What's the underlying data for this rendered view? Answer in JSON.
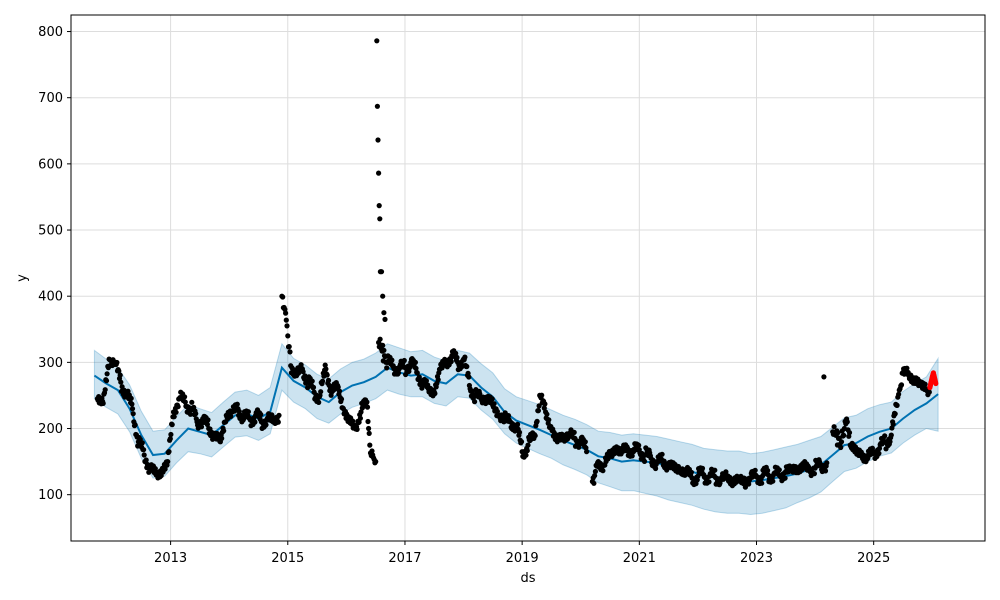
{
  "chart_data": {
    "type": "scatter",
    "xlabel": "ds",
    "ylabel": "y",
    "xlim": [
      2011.3,
      2026.9
    ],
    "ylim": [
      30,
      825
    ],
    "grid": true,
    "x_ticks": [
      2013,
      2015,
      2017,
      2019,
      2021,
      2023,
      2025
    ],
    "x_tick_labels": [
      "2013",
      "2015",
      "2017",
      "2019",
      "2021",
      "2023",
      "2025"
    ],
    "y_ticks": [
      100,
      200,
      300,
      400,
      500,
      600,
      700,
      800
    ],
    "y_tick_labels": [
      "100",
      "200",
      "300",
      "400",
      "500",
      "600",
      "700",
      "800"
    ],
    "colors": {
      "observed": "#000000",
      "forecast": "#0072B2",
      "interval": "#0072B2",
      "recent": "#ff0000",
      "grid": "#dddddd"
    },
    "forecast": {
      "x": [
        2011.7,
        2011.9,
        2012.1,
        2012.3,
        2012.5,
        2012.7,
        2012.9,
        2013.1,
        2013.3,
        2013.5,
        2013.7,
        2013.9,
        2014.1,
        2014.3,
        2014.5,
        2014.7,
        2014.9,
        2015.1,
        2015.3,
        2015.5,
        2015.7,
        2015.9,
        2016.1,
        2016.3,
        2016.5,
        2016.7,
        2016.9,
        2017.1,
        2017.3,
        2017.5,
        2017.7,
        2017.9,
        2018.1,
        2018.3,
        2018.5,
        2018.7,
        2018.9,
        2019.1,
        2019.3,
        2019.5,
        2019.7,
        2019.9,
        2020.1,
        2020.3,
        2020.5,
        2020.7,
        2020.9,
        2021.1,
        2021.3,
        2021.5,
        2021.7,
        2021.9,
        2022.1,
        2022.3,
        2022.5,
        2022.7,
        2022.9,
        2023.1,
        2023.3,
        2023.5,
        2023.7,
        2023.9,
        2024.1,
        2024.3,
        2024.5,
        2024.7,
        2024.9,
        2025.1,
        2025.3,
        2025.5,
        2025.7,
        2025.9,
        2026.1
      ],
      "yhat": [
        280,
        268,
        258,
        230,
        190,
        160,
        162,
        182,
        200,
        195,
        190,
        205,
        220,
        222,
        215,
        225,
        292,
        272,
        262,
        248,
        240,
        255,
        265,
        270,
        278,
        292,
        285,
        280,
        282,
        272,
        268,
        282,
        280,
        262,
        248,
        225,
        212,
        205,
        198,
        190,
        182,
        175,
        168,
        158,
        155,
        150,
        152,
        150,
        148,
        143,
        140,
        135,
        128,
        126,
        125,
        124,
        120,
        122,
        125,
        128,
        132,
        138,
        145,
        160,
        175,
        178,
        188,
        195,
        200,
        215,
        228,
        238,
        252
      ],
      "lower": [
        245,
        232,
        222,
        195,
        155,
        125,
        128,
        148,
        165,
        162,
        157,
        172,
        187,
        189,
        182,
        192,
        258,
        240,
        230,
        215,
        208,
        222,
        232,
        238,
        245,
        258,
        252,
        248,
        248,
        238,
        234,
        248,
        246,
        228,
        214,
        192,
        178,
        170,
        162,
        155,
        145,
        138,
        130,
        118,
        112,
        106,
        106,
        102,
        98,
        92,
        88,
        84,
        78,
        74,
        72,
        72,
        70,
        72,
        76,
        80,
        88,
        95,
        104,
        120,
        135,
        140,
        150,
        158,
        163,
        178,
        190,
        200,
        196
      ],
      "upper": [
        318,
        305,
        292,
        266,
        226,
        196,
        198,
        218,
        236,
        230,
        224,
        240,
        255,
        258,
        250,
        262,
        328,
        306,
        296,
        282,
        275,
        290,
        300,
        305,
        314,
        328,
        322,
        316,
        318,
        308,
        302,
        318,
        314,
        298,
        284,
        260,
        248,
        242,
        236,
        228,
        220,
        214,
        206,
        196,
        194,
        190,
        192,
        190,
        188,
        184,
        180,
        176,
        170,
        168,
        166,
        166,
        162,
        164,
        168,
        172,
        176,
        182,
        188,
        202,
        216,
        220,
        230,
        236,
        240,
        256,
        268,
        278,
        306
      ]
    },
    "observed_segments": [
      {
        "x": [
          2011.75,
          2011.85,
          2011.95,
          2012.05,
          2012.15,
          2012.25,
          2012.35,
          2012.45,
          2012.55,
          2012.65,
          2012.75,
          2012.85,
          2012.95,
          2013.05,
          2013.15,
          2013.25,
          2013.35,
          2013.45,
          2013.55,
          2013.65,
          2013.75,
          2013.85,
          2013.95,
          2014.05,
          2014.15,
          2014.25,
          2014.35,
          2014.45,
          2014.55,
          2014.65,
          2014.75,
          2014.85
        ],
        "y": [
          245,
          238,
          305,
          300,
          270,
          250,
          230,
          180,
          160,
          140,
          130,
          135,
          150,
          225,
          245,
          240,
          230,
          210,
          215,
          200,
          190,
          180,
          220,
          225,
          230,
          215,
          215,
          220,
          210,
          215,
          210,
          220
        ]
      },
      {
        "x": [
          2014.9,
          2014.95,
          2015.0,
          2015.05,
          2015.15,
          2015.25,
          2015.35,
          2015.45,
          2015.55,
          2015.65,
          2015.75,
          2015.85,
          2015.95,
          2016.05,
          2016.15,
          2016.25,
          2016.35,
          2016.4,
          2016.45,
          2016.5
        ],
        "y": [
          400,
          380,
          340,
          295,
          280,
          290,
          270,
          255,
          250,
          290,
          255,
          265,
          230,
          210,
          200,
          225,
          240,
          175,
          160,
          150
        ]
      },
      {
        "x": [
          2016.55,
          2016.6,
          2016.65,
          2016.7,
          2016.8,
          2016.9,
          2017.0,
          2017.1,
          2017.2,
          2017.3,
          2017.4,
          2017.5,
          2017.6,
          2017.7,
          2017.8,
          2017.9,
          2018.0,
          2018.1,
          2018.2,
          2018.3,
          2018.4,
          2018.5,
          2018.6,
          2018.7,
          2018.8,
          2018.9,
          2019.0,
          2019.1,
          2019.2,
          2019.3,
          2019.4,
          2019.5,
          2019.6,
          2019.7,
          2019.8,
          2019.9,
          2020.0,
          2020.1
        ],
        "y": [
          330,
          320,
          310,
          300,
          295,
          290,
          292,
          300,
          285,
          270,
          260,
          255,
          290,
          300,
          310,
          300,
          305,
          265,
          250,
          245,
          248,
          235,
          220,
          215,
          210,
          205,
          165,
          175,
          185,
          250,
          225,
          200,
          180,
          190,
          190,
          185,
          180,
          165
        ]
      },
      {
        "x": [
          2020.2,
          2020.25,
          2020.3,
          2020.4,
          2020.5,
          2020.6,
          2020.7,
          2020.8,
          2020.9,
          2021.0,
          2021.1,
          2021.2,
          2021.3,
          2021.4,
          2021.5,
          2021.6,
          2021.7,
          2021.8,
          2021.9,
          2022.0,
          2022.1,
          2022.2,
          2022.3,
          2022.4,
          2022.5,
          2022.6,
          2022.7,
          2022.8,
          2022.9,
          2023.0,
          2023.1,
          2023.2,
          2023.3,
          2023.4,
          2023.5,
          2023.6,
          2023.7,
          2023.8,
          2023.9,
          2024.0,
          2024.1,
          2024.2
        ],
        "y": [
          120,
          135,
          150,
          145,
          160,
          170,
          165,
          170,
          165,
          168,
          160,
          155,
          150,
          150,
          145,
          140,
          138,
          135,
          125,
          128,
          130,
          128,
          126,
          124,
          125,
          122,
          122,
          120,
          125,
          128,
          128,
          130,
          132,
          128,
          135,
          138,
          140,
          142,
          138,
          140,
          145,
          148
        ]
      },
      {
        "x": [
          2024.3,
          2024.35,
          2024.4,
          2024.45,
          2024.5,
          2024.55,
          2024.6,
          2024.7,
          2024.8,
          2024.9,
          2025.0,
          2025.1,
          2025.2,
          2025.3,
          2025.4,
          2025.45,
          2025.5,
          2025.6,
          2025.7,
          2025.8,
          2025.9,
          2025.95
        ],
        "y": [
          195,
          190,
          185,
          180,
          200,
          210,
          175,
          165,
          160,
          155,
          165,
          170,
          180,
          190,
          235,
          260,
          285,
          280,
          275,
          265,
          260,
          255
        ]
      }
    ],
    "observed_outliers": {
      "x": [
        2016.52,
        2016.53,
        2016.54,
        2016.55,
        2016.56,
        2016.57,
        2016.58,
        2016.6,
        2016.62,
        2016.64,
        2016.66,
        2024.15
      ],
      "y": [
        786,
        687,
        636,
        586,
        537,
        517,
        437,
        437,
        400,
        375,
        365,
        278
      ]
    },
    "recent": {
      "x": [
        2025.96,
        2025.98,
        2026.0,
        2026.02,
        2026.04,
        2026.06
      ],
      "y": [
        262,
        270,
        278,
        284,
        276,
        268
      ]
    }
  }
}
